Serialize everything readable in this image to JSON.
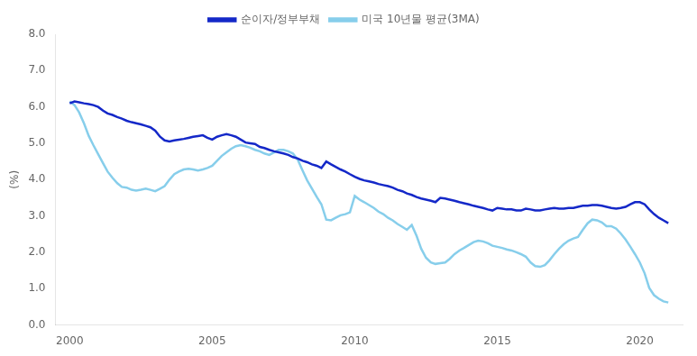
{
  "chart_data": {
    "type": "line",
    "ylabel": "(%)",
    "xlim": [
      1999.5,
      2021.5
    ],
    "xticks": [
      2000,
      2005,
      2010,
      2015,
      2020
    ],
    "ylim": [
      0.0,
      8.0
    ],
    "yticks": [
      {
        "value": 0.0,
        "label": "0.0"
      },
      {
        "value": 1.0,
        "label": "1.0"
      },
      {
        "value": 2.0,
        "label": "2.0"
      },
      {
        "value": 3.0,
        "label": "3.0"
      },
      {
        "value": 4.0,
        "label": "4.0"
      },
      {
        "value": 5.0,
        "label": "5.0"
      },
      {
        "value": 6.0,
        "label": "6.0"
      },
      {
        "value": 7.0,
        "label": "7.0"
      },
      {
        "value": 8.0,
        "label": "8.0"
      }
    ],
    "grid": false,
    "legend": "top",
    "x": [
      2000.0,
      2000.17,
      2000.33,
      2000.5,
      2000.67,
      2000.83,
      2001.0,
      2001.17,
      2001.33,
      2001.5,
      2001.67,
      2001.83,
      2002.0,
      2002.17,
      2002.33,
      2002.5,
      2002.67,
      2002.83,
      2003.0,
      2003.17,
      2003.33,
      2003.5,
      2003.67,
      2003.83,
      2004.0,
      2004.17,
      2004.33,
      2004.5,
      2004.67,
      2004.83,
      2005.0,
      2005.17,
      2005.33,
      2005.5,
      2005.67,
      2005.83,
      2006.0,
      2006.17,
      2006.33,
      2006.5,
      2006.67,
      2006.83,
      2007.0,
      2007.17,
      2007.33,
      2007.5,
      2007.67,
      2007.83,
      2008.0,
      2008.17,
      2008.33,
      2008.5,
      2008.67,
      2008.83,
      2009.0,
      2009.17,
      2009.33,
      2009.5,
      2009.67,
      2009.83,
      2010.0,
      2010.17,
      2010.33,
      2010.5,
      2010.67,
      2010.83,
      2011.0,
      2011.17,
      2011.33,
      2011.5,
      2011.67,
      2011.83,
      2012.0,
      2012.17,
      2012.33,
      2012.5,
      2012.67,
      2012.83,
      2013.0,
      2013.17,
      2013.33,
      2013.5,
      2013.67,
      2013.83,
      2014.0,
      2014.17,
      2014.33,
      2014.5,
      2014.67,
      2014.83,
      2015.0,
      2015.17,
      2015.33,
      2015.5,
      2015.67,
      2015.83,
      2016.0,
      2016.17,
      2016.33,
      2016.5,
      2016.67,
      2016.83,
      2017.0,
      2017.17,
      2017.33,
      2017.5,
      2017.67,
      2017.83,
      2018.0,
      2018.17,
      2018.33,
      2018.5,
      2018.67,
      2018.83,
      2019.0,
      2019.17,
      2019.33,
      2019.5,
      2019.67,
      2019.83,
      2020.0,
      2020.17,
      2020.33,
      2020.5,
      2020.67,
      2020.83,
      2021.0
    ],
    "series": [
      {
        "name": "순이자/정부부채",
        "color": "#1428c8",
        "values": [
          6.1,
          6.15,
          6.13,
          6.1,
          6.08,
          6.05,
          6.0,
          5.9,
          5.82,
          5.78,
          5.72,
          5.68,
          5.62,
          5.58,
          5.55,
          5.52,
          5.48,
          5.44,
          5.35,
          5.18,
          5.08,
          5.05,
          5.08,
          5.1,
          5.12,
          5.15,
          5.18,
          5.2,
          5.22,
          5.15,
          5.1,
          5.18,
          5.22,
          5.25,
          5.22,
          5.18,
          5.1,
          5.02,
          5.0,
          4.98,
          4.9,
          4.87,
          4.82,
          4.78,
          4.75,
          4.72,
          4.68,
          4.62,
          4.58,
          4.52,
          4.48,
          4.42,
          4.38,
          4.32,
          4.5,
          4.42,
          4.35,
          4.28,
          4.22,
          4.15,
          4.08,
          4.02,
          3.98,
          3.95,
          3.92,
          3.88,
          3.85,
          3.82,
          3.78,
          3.72,
          3.68,
          3.62,
          3.58,
          3.52,
          3.48,
          3.45,
          3.42,
          3.38,
          3.5,
          3.48,
          3.45,
          3.42,
          3.38,
          3.35,
          3.32,
          3.28,
          3.25,
          3.22,
          3.18,
          3.15,
          3.22,
          3.2,
          3.18,
          3.18,
          3.15,
          3.15,
          3.2,
          3.18,
          3.15,
          3.15,
          3.18,
          3.2,
          3.22,
          3.2,
          3.2,
          3.22,
          3.22,
          3.25,
          3.28,
          3.28,
          3.3,
          3.3,
          3.28,
          3.25,
          3.22,
          3.2,
          3.22,
          3.25,
          3.32,
          3.38,
          3.38,
          3.32,
          3.18,
          3.05,
          2.95,
          2.88,
          2.8
        ]
      },
      {
        "name": "미국 10년물 평균(3MA)",
        "color": "#87ceeb",
        "values": [
          6.15,
          6.05,
          5.85,
          5.55,
          5.2,
          4.95,
          4.7,
          4.45,
          4.22,
          4.05,
          3.9,
          3.8,
          3.78,
          3.72,
          3.7,
          3.72,
          3.75,
          3.72,
          3.68,
          3.75,
          3.82,
          4.0,
          4.15,
          4.22,
          4.28,
          4.3,
          4.28,
          4.25,
          4.28,
          4.32,
          4.38,
          4.52,
          4.65,
          4.75,
          4.85,
          4.92,
          4.95,
          4.92,
          4.88,
          4.82,
          4.78,
          4.72,
          4.68,
          4.75,
          4.82,
          4.82,
          4.78,
          4.72,
          4.55,
          4.25,
          3.98,
          3.75,
          3.52,
          3.32,
          2.9,
          2.88,
          2.95,
          3.02,
          3.05,
          3.1,
          3.55,
          3.45,
          3.38,
          3.3,
          3.22,
          3.12,
          3.05,
          2.95,
          2.88,
          2.78,
          2.7,
          2.62,
          2.75,
          2.45,
          2.1,
          1.85,
          1.72,
          1.68,
          1.7,
          1.72,
          1.82,
          1.95,
          2.05,
          2.12,
          2.2,
          2.28,
          2.32,
          2.3,
          2.25,
          2.18,
          2.15,
          2.12,
          2.08,
          2.05,
          2.0,
          1.95,
          1.88,
          1.72,
          1.62,
          1.6,
          1.65,
          1.78,
          1.95,
          2.1,
          2.22,
          2.32,
          2.38,
          2.42,
          2.62,
          2.8,
          2.9,
          2.88,
          2.82,
          2.72,
          2.72,
          2.65,
          2.52,
          2.35,
          2.15,
          1.95,
          1.72,
          1.42,
          1.02,
          0.82,
          0.72,
          0.65,
          0.62
        ]
      }
    ]
  }
}
